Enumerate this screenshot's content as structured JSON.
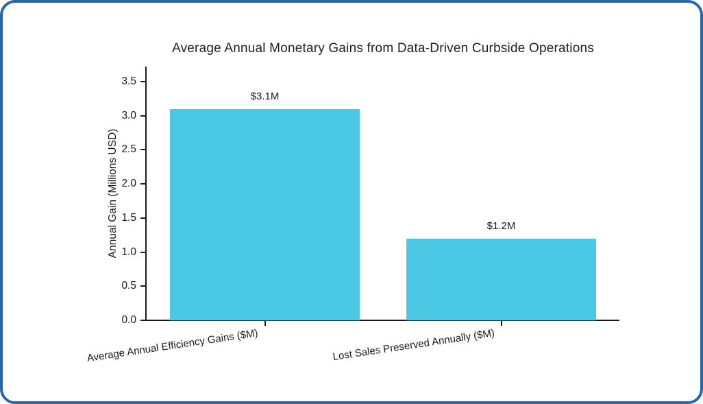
{
  "frame": {
    "border_color": "#2566AE",
    "background_color": "#FFFFFF"
  },
  "chart_data": {
    "type": "bar",
    "title": "Average Annual Monetary Gains from Data-Driven Curbside Operations",
    "xlabel": "",
    "ylabel": "Annual Gain (Millions USD)",
    "categories": [
      "Average Annual Efficiency Gains ($M)",
      "Lost Sales Preserved Annually ($M)"
    ],
    "values": [
      3.1,
      1.2
    ],
    "bar_labels": [
      "$3.1M",
      "$1.2M"
    ],
    "bar_color": "#4BC8E3",
    "yticks": [
      0.0,
      0.5,
      1.0,
      1.5,
      2.0,
      2.5,
      3.0,
      3.5
    ],
    "ytick_labels": [
      "0.0",
      "0.5",
      "1.0",
      "1.5",
      "2.0",
      "2.5",
      "3.0",
      "3.5"
    ],
    "ylim": [
      0,
      3.7
    ],
    "grid": false,
    "legend_position": "none"
  }
}
